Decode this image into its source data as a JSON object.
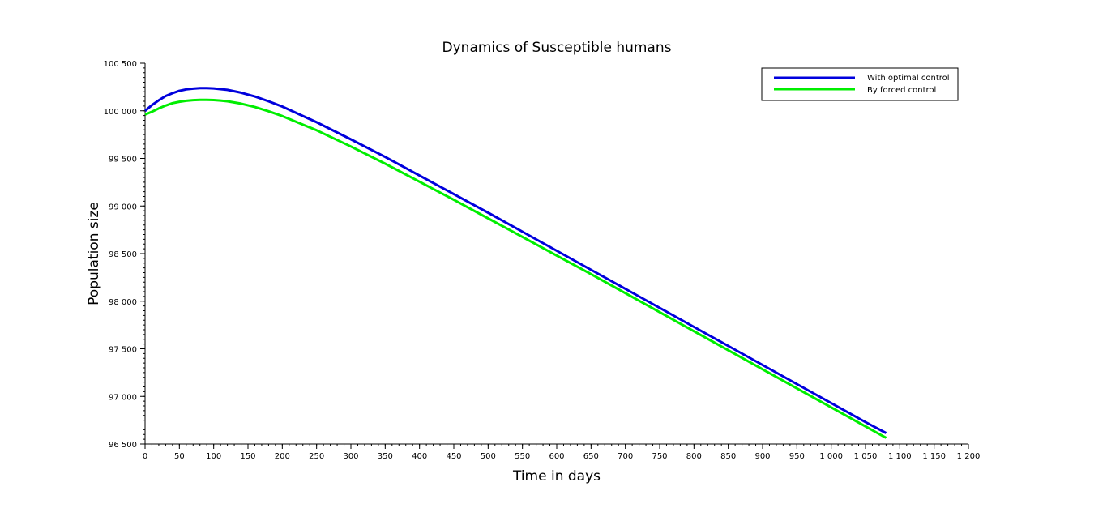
{
  "chart_data": {
    "type": "line",
    "title": "Dynamics of Susceptible humans",
    "xlabel": "Time in days",
    "ylabel": "Population size",
    "xlim": [
      0,
      1200
    ],
    "ylim": [
      96500,
      100500
    ],
    "xticks": [
      0,
      50,
      100,
      150,
      200,
      250,
      300,
      350,
      400,
      450,
      500,
      550,
      600,
      650,
      700,
      750,
      800,
      850,
      900,
      950,
      1000,
      1050,
      1100,
      1150,
      1200
    ],
    "xtick_labels": [
      "0",
      "50",
      "100",
      "150",
      "200",
      "250",
      "300",
      "350",
      "400",
      "450",
      "500",
      "550",
      "600",
      "650",
      "700",
      "750",
      "800",
      "850",
      "900",
      "950",
      "1 000",
      "1 050",
      "1 100",
      "1 150",
      "1 200"
    ],
    "yticks": [
      96500,
      97000,
      97500,
      98000,
      98500,
      99000,
      99500,
      100000,
      100500
    ],
    "ytick_labels": [
      "96 500",
      "97 000",
      "97 500",
      "98 000",
      "98 500",
      "99 000",
      "99 500",
      "100 000",
      "100 500"
    ],
    "grid": false,
    "legend_position": "top-right",
    "series": [
      {
        "name": "With optimal control",
        "color": "#0000dd",
        "x": [
          0,
          10,
          20,
          30,
          40,
          50,
          60,
          70,
          80,
          90,
          100,
          110,
          120,
          140,
          160,
          180,
          200,
          250,
          300,
          350,
          400,
          450,
          500,
          550,
          600,
          650,
          700,
          750,
          800,
          850,
          900,
          950,
          1000,
          1050,
          1080
        ],
        "y": [
          100000,
          100060,
          100110,
          100155,
          100185,
          100210,
          100225,
          100233,
          100238,
          100238,
          100235,
          100228,
          100220,
          100190,
          100150,
          100100,
          100045,
          99880,
          99700,
          99515,
          99320,
          99125,
          98930,
          98730,
          98530,
          98330,
          98130,
          97930,
          97730,
          97530,
          97330,
          97130,
          96930,
          96730,
          96615
        ]
      },
      {
        "name": "By forced control",
        "color": "#00ee00",
        "x": [
          0,
          10,
          20,
          30,
          40,
          50,
          60,
          70,
          80,
          90,
          100,
          110,
          120,
          140,
          160,
          180,
          200,
          250,
          300,
          350,
          400,
          450,
          500,
          550,
          600,
          650,
          700,
          750,
          800,
          850,
          900,
          950,
          1000,
          1050,
          1080
        ],
        "y": [
          99960,
          99990,
          100025,
          100055,
          100080,
          100095,
          100105,
          100112,
          100115,
          100115,
          100113,
          100108,
          100100,
          100075,
          100040,
          99995,
          99945,
          99795,
          99625,
          99445,
          99255,
          99065,
          98870,
          98675,
          98480,
          98285,
          98085,
          97885,
          97685,
          97485,
          97285,
          97085,
          96885,
          96685,
          96565
        ]
      }
    ]
  }
}
